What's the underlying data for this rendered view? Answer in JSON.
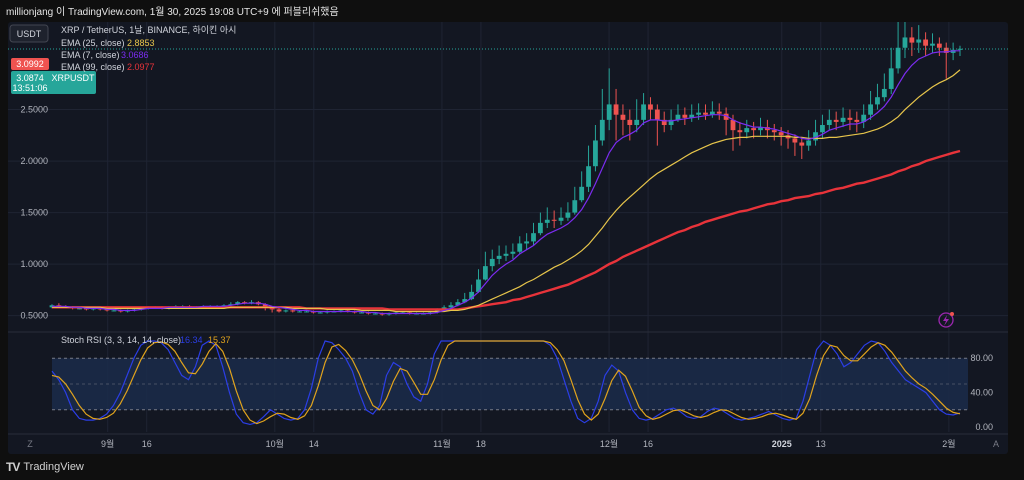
{
  "header": {
    "title": "millionjang 이 TradingView.com, 1월 30, 2025 19:08 UTC+9 에 퍼블리쉬했음"
  },
  "price_pane": {
    "currency_button": "USDT",
    "legend": {
      "symbol": "XRP / TetherUS, 1날, BINANCE, 하이킨 아시",
      "ema25_label": "EMA (25, close)",
      "ema25_value": "2.8853",
      "ema7_label": "EMA (7, close)",
      "ema7_value": "3.0686",
      "ema99_label": "EMA (99, close)",
      "ema99_value": "2.0977"
    },
    "price_tags": {
      "red": "3.0992",
      "green_price": "3.0874",
      "green_symbol": "XRPUSDT",
      "countdown": "13:51:06"
    }
  },
  "rsi_pane": {
    "legend_label": "Stoch RSI (3, 3, 14, 14, close)",
    "k_value": "16.34",
    "d_value": "15.37",
    "upper_band": 80,
    "lower_band": 20
  },
  "footer": {
    "logo_text": "TradingView",
    "left_button": "Z",
    "right_button": "A"
  },
  "colors": {
    "background": "#131722",
    "grid": "#1f2433",
    "up": "#26a69a",
    "down": "#ef5350",
    "ema7": "#7b2cf0",
    "ema25": "#e7c54b",
    "ema99": "#e8333a",
    "stoch_k": "#2b3ee6",
    "stoch_d": "#e0a31d",
    "band_fill": "#1b2b4a"
  },
  "chart_data": {
    "type": "candlestick",
    "x_tick_labels": [
      "9월",
      "16",
      "10월",
      "14",
      "11월",
      "18",
      "12월",
      "16",
      "2025",
      "13",
      "2월"
    ],
    "y_tick_labels": [
      "0.5000",
      "1.0000",
      "1.5000",
      "2.0000",
      "2.5000"
    ],
    "ylim": [
      0.36,
      3.35
    ],
    "rsi_tick_labels": [
      "80.00",
      "40.00",
      "0.00"
    ],
    "rsi_ylim": [
      0,
      100
    ],
    "start_date": "2024-08-22",
    "candles": [
      [
        0.58,
        0.6,
        0.61,
        0.57
      ],
      [
        0.6,
        0.59,
        0.62,
        0.58
      ],
      [
        0.59,
        0.58,
        0.6,
        0.57
      ],
      [
        0.58,
        0.57,
        0.59,
        0.56
      ],
      [
        0.57,
        0.57,
        0.58,
        0.56
      ],
      [
        0.57,
        0.56,
        0.58,
        0.55
      ],
      [
        0.56,
        0.57,
        0.58,
        0.55
      ],
      [
        0.57,
        0.56,
        0.58,
        0.55
      ],
      [
        0.56,
        0.55,
        0.57,
        0.54
      ],
      [
        0.55,
        0.55,
        0.56,
        0.54
      ],
      [
        0.55,
        0.54,
        0.56,
        0.53
      ],
      [
        0.54,
        0.55,
        0.56,
        0.53
      ],
      [
        0.55,
        0.56,
        0.57,
        0.54
      ],
      [
        0.56,
        0.57,
        0.58,
        0.55
      ],
      [
        0.57,
        0.58,
        0.59,
        0.56
      ],
      [
        0.58,
        0.58,
        0.59,
        0.57
      ],
      [
        0.58,
        0.57,
        0.59,
        0.56
      ],
      [
        0.57,
        0.58,
        0.59,
        0.56
      ],
      [
        0.58,
        0.59,
        0.6,
        0.57
      ],
      [
        0.59,
        0.59,
        0.6,
        0.58
      ],
      [
        0.59,
        0.58,
        0.6,
        0.57
      ],
      [
        0.58,
        0.58,
        0.59,
        0.57
      ],
      [
        0.58,
        0.59,
        0.6,
        0.57
      ],
      [
        0.59,
        0.59,
        0.6,
        0.58
      ],
      [
        0.59,
        0.59,
        0.6,
        0.58
      ],
      [
        0.59,
        0.6,
        0.61,
        0.58
      ],
      [
        0.6,
        0.61,
        0.63,
        0.59
      ],
      [
        0.61,
        0.63,
        0.64,
        0.6
      ],
      [
        0.63,
        0.62,
        0.64,
        0.61
      ],
      [
        0.62,
        0.63,
        0.65,
        0.61
      ],
      [
        0.63,
        0.61,
        0.64,
        0.6
      ],
      [
        0.61,
        0.58,
        0.62,
        0.55
      ],
      [
        0.58,
        0.56,
        0.59,
        0.53
      ],
      [
        0.56,
        0.54,
        0.57,
        0.53
      ],
      [
        0.54,
        0.55,
        0.56,
        0.53
      ],
      [
        0.55,
        0.54,
        0.56,
        0.53
      ],
      [
        0.54,
        0.54,
        0.55,
        0.53
      ],
      [
        0.54,
        0.54,
        0.55,
        0.53
      ],
      [
        0.54,
        0.53,
        0.55,
        0.52
      ],
      [
        0.53,
        0.53,
        0.54,
        0.52
      ],
      [
        0.53,
        0.54,
        0.55,
        0.52
      ],
      [
        0.54,
        0.54,
        0.55,
        0.53
      ],
      [
        0.54,
        0.55,
        0.56,
        0.53
      ],
      [
        0.55,
        0.54,
        0.56,
        0.53
      ],
      [
        0.54,
        0.53,
        0.55,
        0.52
      ],
      [
        0.53,
        0.53,
        0.54,
        0.52
      ],
      [
        0.53,
        0.52,
        0.54,
        0.51
      ],
      [
        0.52,
        0.52,
        0.53,
        0.51
      ],
      [
        0.52,
        0.51,
        0.53,
        0.5
      ],
      [
        0.51,
        0.52,
        0.53,
        0.5
      ],
      [
        0.52,
        0.53,
        0.54,
        0.51
      ],
      [
        0.53,
        0.53,
        0.54,
        0.52
      ],
      [
        0.53,
        0.52,
        0.54,
        0.51
      ],
      [
        0.52,
        0.52,
        0.53,
        0.51
      ],
      [
        0.52,
        0.52,
        0.53,
        0.51
      ],
      [
        0.52,
        0.53,
        0.54,
        0.51
      ],
      [
        0.53,
        0.55,
        0.57,
        0.52
      ],
      [
        0.55,
        0.58,
        0.6,
        0.54
      ],
      [
        0.58,
        0.6,
        0.63,
        0.57
      ],
      [
        0.6,
        0.63,
        0.66,
        0.59
      ],
      [
        0.63,
        0.66,
        0.72,
        0.62
      ],
      [
        0.66,
        0.73,
        0.8,
        0.65
      ],
      [
        0.73,
        0.85,
        0.95,
        0.72
      ],
      [
        0.85,
        0.98,
        1.12,
        0.84
      ],
      [
        0.98,
        1.05,
        1.14,
        0.93
      ],
      [
        1.05,
        1.08,
        1.18,
        1.0
      ],
      [
        1.08,
        1.1,
        1.18,
        1.03
      ],
      [
        1.1,
        1.12,
        1.2,
        1.05
      ],
      [
        1.12,
        1.2,
        1.27,
        1.1
      ],
      [
        1.2,
        1.22,
        1.3,
        1.14
      ],
      [
        1.22,
        1.3,
        1.4,
        1.18
      ],
      [
        1.3,
        1.4,
        1.5,
        1.28
      ],
      [
        1.4,
        1.43,
        1.55,
        1.35
      ],
      [
        1.43,
        1.42,
        1.52,
        1.35
      ],
      [
        1.42,
        1.45,
        1.55,
        1.38
      ],
      [
        1.45,
        1.5,
        1.6,
        1.42
      ],
      [
        1.5,
        1.62,
        1.75,
        1.48
      ],
      [
        1.62,
        1.75,
        1.9,
        1.6
      ],
      [
        1.75,
        1.95,
        2.15,
        1.7
      ],
      [
        1.95,
        2.2,
        2.35,
        1.9
      ],
      [
        2.2,
        2.4,
        2.7,
        2.15
      ],
      [
        2.4,
        2.55,
        2.9,
        2.3
      ],
      [
        2.55,
        2.45,
        2.7,
        2.2
      ],
      [
        2.45,
        2.4,
        2.55,
        2.25
      ],
      [
        2.4,
        2.35,
        2.5,
        2.2
      ],
      [
        2.35,
        2.4,
        2.6,
        2.28
      ],
      [
        2.4,
        2.55,
        2.66,
        2.35
      ],
      [
        2.55,
        2.5,
        2.62,
        2.4
      ],
      [
        2.5,
        2.4,
        2.55,
        2.15
      ],
      [
        2.4,
        2.35,
        2.48,
        2.28
      ],
      [
        2.35,
        2.4,
        2.5,
        2.3
      ],
      [
        2.4,
        2.45,
        2.55,
        2.38
      ],
      [
        2.45,
        2.42,
        2.52,
        2.35
      ],
      [
        2.42,
        2.45,
        2.55,
        2.38
      ],
      [
        2.45,
        2.47,
        2.56,
        2.4
      ],
      [
        2.47,
        2.45,
        2.55,
        2.4
      ],
      [
        2.45,
        2.48,
        2.58,
        2.42
      ],
      [
        2.48,
        2.46,
        2.56,
        2.4
      ],
      [
        2.46,
        2.4,
        2.52,
        2.25
      ],
      [
        2.4,
        2.3,
        2.45,
        2.1
      ],
      [
        2.3,
        2.28,
        2.38,
        2.15
      ],
      [
        2.28,
        2.32,
        2.4,
        2.22
      ],
      [
        2.32,
        2.3,
        2.38,
        2.22
      ],
      [
        2.3,
        2.33,
        2.42,
        2.25
      ],
      [
        2.33,
        2.3,
        2.4,
        2.22
      ],
      [
        2.3,
        2.28,
        2.36,
        2.2
      ],
      [
        2.28,
        2.25,
        2.33,
        2.15
      ],
      [
        2.25,
        2.22,
        2.3,
        2.12
      ],
      [
        2.22,
        2.18,
        2.26,
        2.05
      ],
      [
        2.18,
        2.15,
        2.22,
        2.02
      ],
      [
        2.15,
        2.2,
        2.3,
        2.1
      ],
      [
        2.2,
        2.28,
        2.4,
        2.15
      ],
      [
        2.28,
        2.35,
        2.45,
        2.22
      ],
      [
        2.35,
        2.4,
        2.5,
        2.3
      ],
      [
        2.4,
        2.38,
        2.48,
        2.3
      ],
      [
        2.38,
        2.42,
        2.52,
        2.33
      ],
      [
        2.42,
        2.4,
        2.5,
        2.3
      ],
      [
        2.4,
        2.38,
        2.48,
        2.28
      ],
      [
        2.38,
        2.45,
        2.55,
        2.32
      ],
      [
        2.45,
        2.55,
        2.68,
        2.4
      ],
      [
        2.55,
        2.62,
        2.75,
        2.5
      ],
      [
        2.62,
        2.7,
        2.85,
        2.58
      ],
      [
        2.7,
        2.9,
        3.1,
        2.65
      ],
      [
        2.9,
        3.1,
        3.35,
        2.85
      ],
      [
        3.1,
        3.2,
        3.35,
        3.0
      ],
      [
        3.2,
        3.15,
        3.3,
        3.02
      ],
      [
        3.15,
        3.18,
        3.32,
        3.05
      ],
      [
        3.18,
        3.12,
        3.25,
        3.02
      ],
      [
        3.12,
        3.14,
        3.24,
        3.05
      ],
      [
        3.14,
        3.1,
        3.2,
        3.02
      ],
      [
        3.1,
        3.05,
        3.15,
        2.8
      ],
      [
        3.05,
        3.08,
        3.15,
        2.98
      ],
      [
        3.08,
        3.09,
        3.12,
        3.02
      ]
    ],
    "ema7": [
      0.59,
      0.59,
      0.59,
      0.58,
      0.58,
      0.57,
      0.57,
      0.57,
      0.56,
      0.56,
      0.55,
      0.55,
      0.55,
      0.56,
      0.57,
      0.57,
      0.57,
      0.58,
      0.58,
      0.58,
      0.58,
      0.58,
      0.59,
      0.59,
      0.59,
      0.59,
      0.6,
      0.61,
      0.62,
      0.62,
      0.62,
      0.61,
      0.59,
      0.58,
      0.57,
      0.56,
      0.55,
      0.55,
      0.54,
      0.54,
      0.54,
      0.54,
      0.54,
      0.54,
      0.54,
      0.54,
      0.53,
      0.53,
      0.52,
      0.52,
      0.52,
      0.52,
      0.52,
      0.52,
      0.52,
      0.52,
      0.53,
      0.55,
      0.57,
      0.6,
      0.63,
      0.67,
      0.73,
      0.81,
      0.89,
      0.95,
      1.0,
      1.04,
      1.1,
      1.14,
      1.18,
      1.24,
      1.29,
      1.32,
      1.35,
      1.39,
      1.45,
      1.53,
      1.64,
      1.78,
      1.93,
      2.08,
      2.18,
      2.23,
      2.26,
      2.3,
      2.37,
      2.4,
      2.4,
      2.39,
      2.39,
      2.4,
      2.41,
      2.42,
      2.43,
      2.44,
      2.45,
      2.45,
      2.44,
      2.4,
      2.37,
      2.35,
      2.33,
      2.33,
      2.32,
      2.31,
      2.29,
      2.27,
      2.25,
      2.22,
      2.21,
      2.23,
      2.26,
      2.3,
      2.32,
      2.34,
      2.36,
      2.36,
      2.38,
      2.42,
      2.47,
      2.53,
      2.62,
      2.74,
      2.85,
      2.93,
      2.99,
      3.02,
      3.05,
      3.06,
      3.06,
      3.07,
      3.07
    ],
    "ema25": [
      0.58,
      0.58,
      0.58,
      0.58,
      0.58,
      0.58,
      0.58,
      0.58,
      0.57,
      0.57,
      0.57,
      0.57,
      0.57,
      0.57,
      0.57,
      0.57,
      0.57,
      0.57,
      0.57,
      0.57,
      0.57,
      0.57,
      0.57,
      0.57,
      0.57,
      0.57,
      0.58,
      0.58,
      0.58,
      0.58,
      0.58,
      0.58,
      0.58,
      0.58,
      0.58,
      0.57,
      0.57,
      0.57,
      0.57,
      0.57,
      0.56,
      0.56,
      0.56,
      0.56,
      0.56,
      0.55,
      0.55,
      0.55,
      0.55,
      0.55,
      0.54,
      0.54,
      0.54,
      0.54,
      0.54,
      0.54,
      0.54,
      0.54,
      0.55,
      0.55,
      0.56,
      0.58,
      0.6,
      0.63,
      0.66,
      0.69,
      0.72,
      0.75,
      0.78,
      0.82,
      0.85,
      0.89,
      0.93,
      0.97,
      1.0,
      1.04,
      1.08,
      1.13,
      1.19,
      1.27,
      1.35,
      1.44,
      1.52,
      1.59,
      1.65,
      1.71,
      1.77,
      1.83,
      1.88,
      1.92,
      1.96,
      2.0,
      2.04,
      2.08,
      2.11,
      2.14,
      2.17,
      2.19,
      2.21,
      2.22,
      2.23,
      2.23,
      2.24,
      2.24,
      2.24,
      2.24,
      2.24,
      2.24,
      2.23,
      2.23,
      2.22,
      2.22,
      2.22,
      2.23,
      2.23,
      2.24,
      2.25,
      2.26,
      2.27,
      2.29,
      2.31,
      2.34,
      2.38,
      2.43,
      2.5,
      2.56,
      2.62,
      2.67,
      2.72,
      2.76,
      2.79,
      2.83,
      2.885
    ],
    "ema99": [
      0.58,
      0.58,
      0.58,
      0.58,
      0.58,
      0.58,
      0.58,
      0.58,
      0.58,
      0.58,
      0.58,
      0.58,
      0.58,
      0.58,
      0.58,
      0.58,
      0.58,
      0.58,
      0.58,
      0.58,
      0.58,
      0.58,
      0.58,
      0.58,
      0.58,
      0.58,
      0.58,
      0.58,
      0.58,
      0.58,
      0.58,
      0.58,
      0.58,
      0.58,
      0.58,
      0.58,
      0.58,
      0.57,
      0.57,
      0.57,
      0.57,
      0.57,
      0.57,
      0.57,
      0.57,
      0.57,
      0.57,
      0.57,
      0.57,
      0.56,
      0.56,
      0.56,
      0.56,
      0.56,
      0.56,
      0.56,
      0.56,
      0.56,
      0.56,
      0.56,
      0.57,
      0.58,
      0.59,
      0.6,
      0.61,
      0.62,
      0.63,
      0.65,
      0.66,
      0.68,
      0.7,
      0.72,
      0.74,
      0.76,
      0.78,
      0.8,
      0.83,
      0.86,
      0.89,
      0.92,
      0.96,
      1.0,
      1.03,
      1.07,
      1.1,
      1.13,
      1.16,
      1.19,
      1.22,
      1.25,
      1.28,
      1.31,
      1.33,
      1.36,
      1.38,
      1.41,
      1.43,
      1.45,
      1.47,
      1.49,
      1.51,
      1.52,
      1.54,
      1.56,
      1.58,
      1.59,
      1.61,
      1.62,
      1.64,
      1.65,
      1.66,
      1.68,
      1.69,
      1.71,
      1.73,
      1.74,
      1.76,
      1.78,
      1.79,
      1.81,
      1.83,
      1.85,
      1.87,
      1.9,
      1.92,
      1.95,
      1.97,
      2.0,
      2.02,
      2.04,
      2.06,
      2.08,
      2.0977
    ],
    "stoch_k": [
      65,
      55,
      40,
      20,
      10,
      8,
      8,
      10,
      15,
      25,
      40,
      60,
      80,
      95,
      100,
      100,
      98,
      90,
      75,
      60,
      55,
      70,
      95,
      100,
      95,
      70,
      40,
      15,
      5,
      3,
      5,
      12,
      20,
      15,
      10,
      8,
      10,
      20,
      45,
      80,
      100,
      98,
      90,
      80,
      65,
      40,
      20,
      15,
      25,
      60,
      75,
      70,
      50,
      35,
      30,
      50,
      85,
      100,
      100,
      100,
      100,
      100,
      100,
      100,
      100,
      100,
      100,
      100,
      100,
      100,
      100,
      100,
      100,
      95,
      80,
      55,
      30,
      10,
      5,
      10,
      30,
      60,
      72,
      65,
      40,
      20,
      10,
      8,
      10,
      15,
      20,
      22,
      18,
      12,
      10,
      12,
      18,
      22,
      20,
      15,
      10,
      8,
      10,
      12,
      15,
      18,
      14,
      10,
      8,
      10,
      30,
      60,
      90,
      100,
      95,
      85,
      70,
      75,
      85,
      95,
      100,
      98,
      88,
      75,
      65,
      55,
      50,
      45,
      40,
      30,
      20,
      15,
      14,
      16.34
    ],
    "stoch_d": [
      60,
      58,
      50,
      38,
      25,
      15,
      10,
      9,
      11,
      16,
      27,
      42,
      60,
      78,
      92,
      98,
      99,
      96,
      88,
      75,
      63,
      62,
      73,
      88,
      97,
      88,
      68,
      42,
      20,
      8,
      4,
      7,
      12,
      16,
      15,
      11,
      9,
      13,
      25,
      48,
      75,
      93,
      96,
      89,
      78,
      62,
      42,
      25,
      20,
      33,
      53,
      68,
      65,
      52,
      38,
      38,
      55,
      78,
      95,
      100,
      100,
      100,
      100,
      100,
      100,
      100,
      100,
      100,
      100,
      100,
      100,
      100,
      100,
      98,
      90,
      77,
      55,
      32,
      15,
      8,
      15,
      33,
      54,
      66,
      59,
      42,
      23,
      13,
      9,
      11,
      15,
      19,
      20,
      17,
      13,
      11,
      13,
      17,
      20,
      19,
      15,
      11,
      9,
      10,
      12,
      15,
      16,
      14,
      11,
      9,
      16,
      33,
      60,
      83,
      95,
      93,
      83,
      77,
      77,
      85,
      93,
      98,
      95,
      87,
      76,
      65,
      57,
      50,
      45,
      38,
      30,
      22,
      17,
      15.37
    ]
  }
}
